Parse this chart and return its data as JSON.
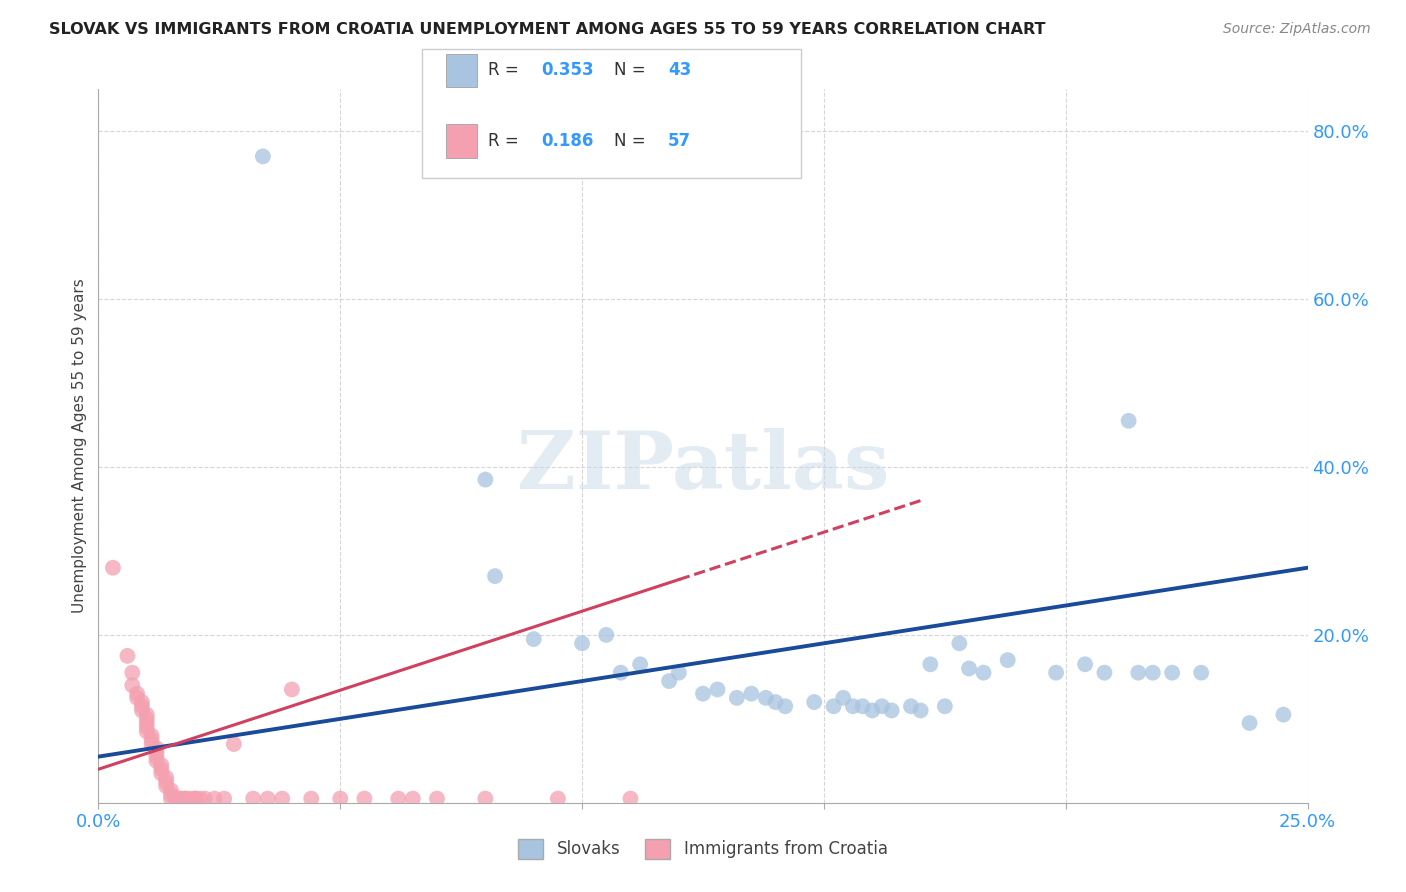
{
  "title": "SLOVAK VS IMMIGRANTS FROM CROATIA UNEMPLOYMENT AMONG AGES 55 TO 59 YEARS CORRELATION CHART",
  "source": "Source: ZipAtlas.com",
  "ylabel": "Unemployment Among Ages 55 to 59 years",
  "xlim": [
    0.0,
    0.25
  ],
  "ylim": [
    0.0,
    0.85
  ],
  "xticks": [
    0.0,
    0.05,
    0.1,
    0.15,
    0.2,
    0.25
  ],
  "xticklabels": [
    "0.0%",
    "",
    "",
    "",
    "",
    "25.0%"
  ],
  "yticks": [
    0.0,
    0.2,
    0.4,
    0.6,
    0.8
  ],
  "yticklabels": [
    "",
    "20.0%",
    "40.0%",
    "60.0%",
    "80.0%"
  ],
  "slovak_R": 0.353,
  "slovak_N": 43,
  "croatia_R": 0.186,
  "croatia_N": 57,
  "slovak_color": "#a8c4e0",
  "croatia_color": "#f4a0b0",
  "slovak_line_color": "#1a4a9a",
  "croatia_line_color": "#d04060",
  "watermark": "ZIPatlas",
  "slovak_line": [
    0.0,
    0.25,
    0.055,
    0.28
  ],
  "croatia_line": [
    0.0,
    0.17,
    0.04,
    0.36
  ],
  "slovak_points": [
    [
      0.034,
      0.77
    ],
    [
      0.08,
      0.385
    ],
    [
      0.082,
      0.27
    ],
    [
      0.09,
      0.195
    ],
    [
      0.1,
      0.19
    ],
    [
      0.105,
      0.2
    ],
    [
      0.108,
      0.155
    ],
    [
      0.112,
      0.165
    ],
    [
      0.118,
      0.145
    ],
    [
      0.12,
      0.155
    ],
    [
      0.125,
      0.13
    ],
    [
      0.128,
      0.135
    ],
    [
      0.132,
      0.125
    ],
    [
      0.135,
      0.13
    ],
    [
      0.138,
      0.125
    ],
    [
      0.14,
      0.12
    ],
    [
      0.142,
      0.115
    ],
    [
      0.148,
      0.12
    ],
    [
      0.152,
      0.115
    ],
    [
      0.154,
      0.125
    ],
    [
      0.156,
      0.115
    ],
    [
      0.158,
      0.115
    ],
    [
      0.16,
      0.11
    ],
    [
      0.162,
      0.115
    ],
    [
      0.164,
      0.11
    ],
    [
      0.168,
      0.115
    ],
    [
      0.17,
      0.11
    ],
    [
      0.172,
      0.165
    ],
    [
      0.175,
      0.115
    ],
    [
      0.178,
      0.19
    ],
    [
      0.18,
      0.16
    ],
    [
      0.183,
      0.155
    ],
    [
      0.188,
      0.17
    ],
    [
      0.198,
      0.155
    ],
    [
      0.204,
      0.165
    ],
    [
      0.208,
      0.155
    ],
    [
      0.213,
      0.455
    ],
    [
      0.215,
      0.155
    ],
    [
      0.218,
      0.155
    ],
    [
      0.222,
      0.155
    ],
    [
      0.228,
      0.155
    ],
    [
      0.238,
      0.095
    ],
    [
      0.245,
      0.105
    ]
  ],
  "croatia_points": [
    [
      0.003,
      0.28
    ],
    [
      0.006,
      0.175
    ],
    [
      0.007,
      0.155
    ],
    [
      0.007,
      0.14
    ],
    [
      0.008,
      0.13
    ],
    [
      0.008,
      0.125
    ],
    [
      0.009,
      0.12
    ],
    [
      0.009,
      0.115
    ],
    [
      0.009,
      0.11
    ],
    [
      0.01,
      0.105
    ],
    [
      0.01,
      0.1
    ],
    [
      0.01,
      0.095
    ],
    [
      0.01,
      0.09
    ],
    [
      0.01,
      0.085
    ],
    [
      0.011,
      0.08
    ],
    [
      0.011,
      0.075
    ],
    [
      0.011,
      0.07
    ],
    [
      0.012,
      0.065
    ],
    [
      0.012,
      0.06
    ],
    [
      0.012,
      0.055
    ],
    [
      0.012,
      0.05
    ],
    [
      0.013,
      0.045
    ],
    [
      0.013,
      0.04
    ],
    [
      0.013,
      0.035
    ],
    [
      0.014,
      0.03
    ],
    [
      0.014,
      0.025
    ],
    [
      0.014,
      0.02
    ],
    [
      0.015,
      0.015
    ],
    [
      0.015,
      0.01
    ],
    [
      0.015,
      0.005
    ],
    [
      0.016,
      0.005
    ],
    [
      0.016,
      0.005
    ],
    [
      0.017,
      0.005
    ],
    [
      0.017,
      0.005
    ],
    [
      0.018,
      0.005
    ],
    [
      0.018,
      0.005
    ],
    [
      0.019,
      0.005
    ],
    [
      0.02,
      0.005
    ],
    [
      0.02,
      0.005
    ],
    [
      0.021,
      0.005
    ],
    [
      0.022,
      0.005
    ],
    [
      0.024,
      0.005
    ],
    [
      0.026,
      0.005
    ],
    [
      0.028,
      0.07
    ],
    [
      0.032,
      0.005
    ],
    [
      0.035,
      0.005
    ],
    [
      0.038,
      0.005
    ],
    [
      0.04,
      0.135
    ],
    [
      0.044,
      0.005
    ],
    [
      0.05,
      0.005
    ],
    [
      0.055,
      0.005
    ],
    [
      0.062,
      0.005
    ],
    [
      0.065,
      0.005
    ],
    [
      0.07,
      0.005
    ],
    [
      0.08,
      0.005
    ],
    [
      0.095,
      0.005
    ],
    [
      0.11,
      0.005
    ]
  ]
}
